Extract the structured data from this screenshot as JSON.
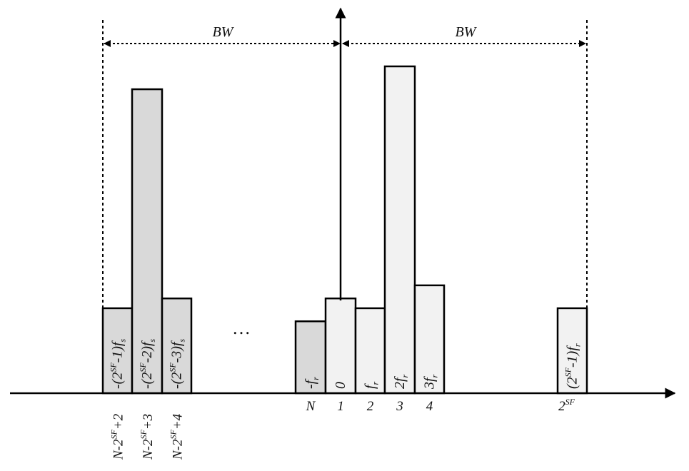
{
  "bandwidth_labels": {
    "left": "BW",
    "right": "BW"
  },
  "ellipsis": "…",
  "bins": [
    {
      "id": "b1",
      "freq_base": "-(2",
      "freq_sup": "SF",
      "freq_tail": "-1)f",
      "freq_sub": "s",
      "index_base": "N-2",
      "index_sup": "SF",
      "index_tail": "+2",
      "shade": "dark",
      "height": 0.26
    },
    {
      "id": "b2",
      "freq_base": "-(2",
      "freq_sup": "SF",
      "freq_tail": "-2)f",
      "freq_sub": "s",
      "index_base": "N-2",
      "index_sup": "SF",
      "index_tail": "+3",
      "shade": "dark",
      "height": 0.93
    },
    {
      "id": "b3",
      "freq_base": "-(2",
      "freq_sup": "SF",
      "freq_tail": "-3)f",
      "freq_sub": "s",
      "index_base": "N-2",
      "index_sup": "SF",
      "index_tail": "+4",
      "shade": "dark",
      "height": 0.29
    },
    {
      "id": "b4",
      "freq_base": "-f",
      "freq_sub": "r",
      "index_base": "N",
      "shade": "dark",
      "height": 0.22
    },
    {
      "id": "b5",
      "freq_base": "0",
      "index_base": "1",
      "shade": "light",
      "height": 0.29
    },
    {
      "id": "b6",
      "freq_base": "f",
      "freq_sub": "r",
      "index_base": "2",
      "shade": "light",
      "height": 0.26
    },
    {
      "id": "b7",
      "freq_base": "2f",
      "freq_sub": "r",
      "index_base": "3",
      "shade": "light",
      "height": 1.0
    },
    {
      "id": "b8",
      "freq_base": "3f",
      "freq_sub": "r",
      "index_base": "4",
      "shade": "light",
      "height": 0.33
    },
    {
      "id": "b9",
      "freq_base": "(2",
      "freq_sup": "SF",
      "freq_tail": "-1)f",
      "freq_sub": "r",
      "index_base": "2",
      "index_sup": "SF",
      "shade": "light",
      "height": 0.26
    }
  ]
}
